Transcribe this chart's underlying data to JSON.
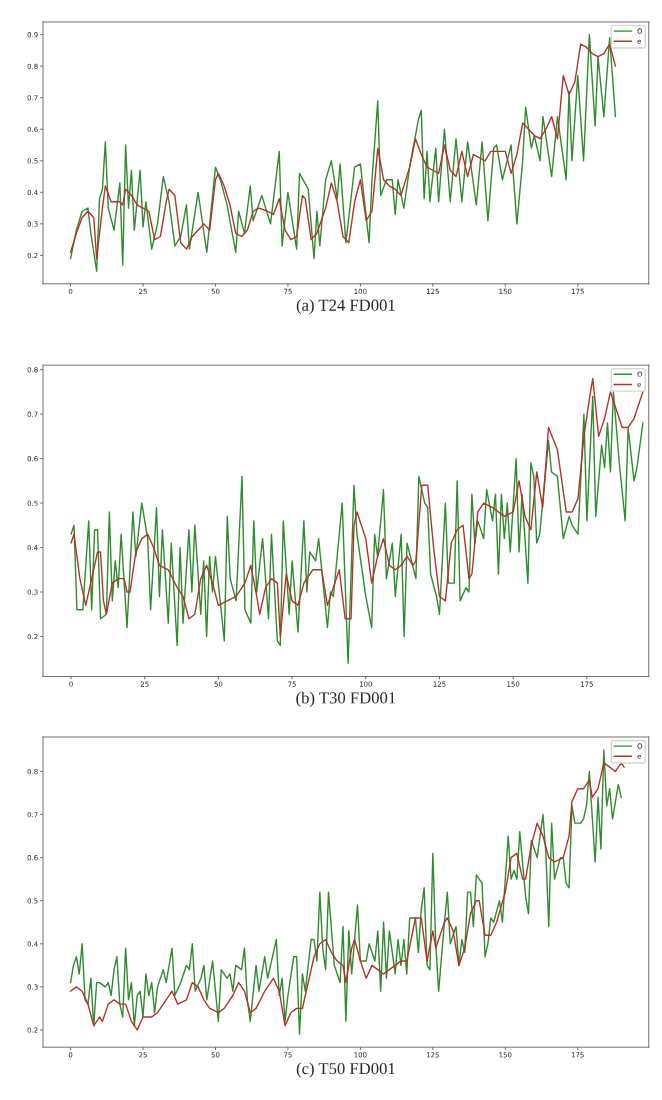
{
  "chart_data": [
    {
      "type": "line",
      "xlim": [
        -9.5,
        199.5
      ],
      "ylim": [
        0.11,
        0.94
      ],
      "xticks": [
        0,
        25,
        50,
        75,
        100,
        125,
        150,
        175
      ],
      "yticks": [
        0.2,
        0.3,
        0.4,
        0.5,
        0.6,
        0.7,
        0.8,
        0.9
      ],
      "legend": "top right",
      "annotations": [
        "(a) T24 FD001"
      ],
      "series": [
        {
          "name": "O",
          "color": "#2e8b2e",
          "x": [
            0,
            2,
            4,
            6,
            7,
            9,
            10,
            11,
            12,
            13,
            15,
            17,
            18,
            19,
            20,
            21,
            22,
            24,
            25,
            26,
            28,
            30,
            32,
            34,
            36,
            38,
            40,
            41,
            44,
            47,
            50,
            52,
            54,
            57,
            58,
            60,
            62,
            63,
            66,
            69,
            72,
            73,
            75,
            78,
            79,
            82,
            84,
            85,
            86,
            88,
            90,
            92,
            93,
            95,
            98,
            100,
            103,
            104,
            106,
            107,
            109,
            111,
            112,
            113,
            115,
            117,
            120,
            121,
            122,
            123,
            124,
            126,
            127,
            129,
            131,
            133,
            135,
            137,
            140,
            142,
            144,
            146,
            147,
            149,
            152,
            154,
            156,
            157,
            159,
            160,
            162,
            163,
            166,
            168,
            171,
            172,
            173,
            175,
            177,
            179,
            181,
            182,
            184,
            186,
            188
          ],
          "values": [
            0.19,
            0.28,
            0.34,
            0.35,
            0.27,
            0.15,
            0.38,
            0.41,
            0.56,
            0.35,
            0.28,
            0.43,
            0.17,
            0.55,
            0.35,
            0.47,
            0.28,
            0.47,
            0.29,
            0.37,
            0.22,
            0.3,
            0.45,
            0.37,
            0.23,
            0.26,
            0.36,
            0.22,
            0.4,
            0.21,
            0.48,
            0.43,
            0.36,
            0.21,
            0.34,
            0.27,
            0.42,
            0.31,
            0.39,
            0.3,
            0.53,
            0.23,
            0.4,
            0.22,
            0.46,
            0.41,
            0.19,
            0.34,
            0.23,
            0.44,
            0.5,
            0.38,
            0.49,
            0.24,
            0.48,
            0.49,
            0.24,
            0.44,
            0.69,
            0.39,
            0.44,
            0.44,
            0.33,
            0.44,
            0.35,
            0.48,
            0.63,
            0.66,
            0.38,
            0.53,
            0.37,
            0.54,
            0.37,
            0.6,
            0.37,
            0.57,
            0.37,
            0.56,
            0.36,
            0.56,
            0.31,
            0.54,
            0.55,
            0.44,
            0.55,
            0.3,
            0.5,
            0.67,
            0.54,
            0.58,
            0.5,
            0.64,
            0.45,
            0.64,
            0.44,
            0.72,
            0.5,
            0.77,
            0.5,
            0.9,
            0.61,
            0.83,
            0.64,
            0.89,
            0.64
          ]
        },
        {
          "name": "e",
          "color": "#b5322a",
          "x": [
            0,
            2,
            4,
            6,
            8,
            9,
            11,
            12,
            14,
            17,
            18,
            19,
            21,
            23,
            25,
            27,
            29,
            31,
            33,
            34,
            36,
            38,
            40,
            42,
            44,
            46,
            48,
            50,
            51,
            53,
            55,
            57,
            59,
            61,
            63,
            65,
            68,
            70,
            72,
            74,
            76,
            78,
            80,
            81,
            83,
            85,
            88,
            90,
            92,
            94,
            96,
            98,
            100,
            102,
            104,
            106,
            108,
            110,
            112,
            114,
            117,
            119,
            121,
            123,
            125,
            127,
            129,
            131,
            133,
            135,
            137,
            139,
            141,
            143,
            145,
            148,
            150,
            152,
            154,
            156,
            158,
            160,
            162,
            164,
            166,
            168,
            170,
            172,
            174,
            176,
            178,
            180,
            182,
            184,
            186,
            188
          ],
          "values": [
            0.21,
            0.27,
            0.32,
            0.34,
            0.32,
            0.19,
            0.35,
            0.42,
            0.37,
            0.37,
            0.36,
            0.41,
            0.39,
            0.36,
            0.35,
            0.34,
            0.25,
            0.26,
            0.37,
            0.41,
            0.39,
            0.24,
            0.22,
            0.26,
            0.28,
            0.3,
            0.28,
            0.44,
            0.46,
            0.42,
            0.36,
            0.27,
            0.26,
            0.28,
            0.34,
            0.35,
            0.34,
            0.33,
            0.38,
            0.28,
            0.25,
            0.26,
            0.39,
            0.38,
            0.25,
            0.27,
            0.35,
            0.43,
            0.37,
            0.26,
            0.24,
            0.37,
            0.44,
            0.31,
            0.34,
            0.54,
            0.44,
            0.42,
            0.41,
            0.39,
            0.48,
            0.57,
            0.52,
            0.48,
            0.47,
            0.46,
            0.55,
            0.47,
            0.45,
            0.53,
            0.45,
            0.52,
            0.51,
            0.5,
            0.53,
            0.53,
            0.53,
            0.46,
            0.52,
            0.62,
            0.6,
            0.58,
            0.57,
            0.6,
            0.64,
            0.57,
            0.77,
            0.71,
            0.75,
            0.87,
            0.86,
            0.84,
            0.83,
            0.84,
            0.87,
            0.8
          ]
        }
      ]
    },
    {
      "type": "line",
      "xlim": [
        -9.5,
        196
      ],
      "ylim": [
        0.11,
        0.81
      ],
      "xticks": [
        0,
        25,
        50,
        75,
        100,
        125,
        150,
        175
      ],
      "yticks": [
        0.2,
        0.3,
        0.4,
        0.5,
        0.6,
        0.7,
        0.8
      ],
      "legend": "top right",
      "annotations": [
        "(b) T30 FD001"
      ],
      "series": [
        {
          "name": "O",
          "color": "#2e8b2e",
          "x": [
            0,
            1,
            2,
            4,
            6,
            7,
            8,
            9,
            10,
            12,
            13,
            14,
            15,
            16,
            17,
            19,
            21,
            22,
            24,
            26,
            27,
            29,
            30,
            31,
            33,
            34,
            36,
            37,
            38,
            40,
            41,
            42,
            44,
            45,
            46,
            47,
            48,
            49,
            52,
            53,
            54,
            56,
            58,
            59,
            61,
            62,
            63,
            65,
            67,
            68,
            70,
            71,
            72,
            74,
            75,
            77,
            79,
            80,
            81,
            83,
            84,
            87,
            88,
            89,
            92,
            94,
            96,
            97,
            100,
            102,
            103,
            104,
            106,
            107,
            109,
            110,
            112,
            113,
            114,
            117,
            118,
            120,
            121,
            122,
            124,
            125,
            127,
            128,
            130,
            131,
            132,
            134,
            135,
            136,
            137,
            138,
            140,
            141,
            143,
            144,
            145,
            146,
            147,
            148,
            149,
            151,
            152,
            153,
            155,
            156,
            157,
            158,
            159,
            162,
            163,
            165,
            167,
            169,
            170,
            172,
            174,
            175,
            177,
            178,
            180,
            181,
            182,
            183,
            184,
            186,
            188,
            189,
            191,
            192,
            194
          ],
          "values": [
            0.43,
            0.45,
            0.26,
            0.26,
            0.46,
            0.26,
            0.44,
            0.44,
            0.24,
            0.25,
            0.48,
            0.28,
            0.37,
            0.31,
            0.43,
            0.22,
            0.48,
            0.38,
            0.5,
            0.42,
            0.26,
            0.49,
            0.29,
            0.44,
            0.23,
            0.41,
            0.18,
            0.4,
            0.23,
            0.44,
            0.3,
            0.45,
            0.25,
            0.37,
            0.2,
            0.38,
            0.3,
            0.38,
            0.19,
            0.47,
            0.33,
            0.28,
            0.56,
            0.26,
            0.23,
            0.46,
            0.3,
            0.42,
            0.24,
            0.43,
            0.19,
            0.18,
            0.46,
            0.25,
            0.37,
            0.21,
            0.46,
            0.3,
            0.39,
            0.37,
            0.42,
            0.22,
            0.3,
            0.29,
            0.5,
            0.14,
            0.54,
            0.43,
            0.29,
            0.22,
            0.43,
            0.38,
            0.53,
            0.33,
            0.41,
            0.29,
            0.43,
            0.2,
            0.41,
            0.33,
            0.56,
            0.5,
            0.49,
            0.34,
            0.29,
            0.25,
            0.5,
            0.32,
            0.32,
            0.55,
            0.28,
            0.31,
            0.3,
            0.52,
            0.41,
            0.46,
            0.42,
            0.53,
            0.46,
            0.52,
            0.34,
            0.52,
            0.42,
            0.5,
            0.39,
            0.6,
            0.39,
            0.52,
            0.32,
            0.59,
            0.56,
            0.41,
            0.43,
            0.64,
            0.57,
            0.56,
            0.42,
            0.47,
            0.45,
            0.43,
            0.7,
            0.46,
            0.74,
            0.47,
            0.63,
            0.58,
            0.68,
            0.57,
            0.75,
            0.59,
            0.46,
            0.67,
            0.55,
            0.58,
            0.68
          ]
        },
        {
          "name": "e",
          "color": "#b5322a",
          "x": [
            0,
            1,
            3,
            5,
            7,
            9,
            10,
            11,
            12,
            14,
            16,
            18,
            19,
            20,
            22,
            24,
            26,
            28,
            30,
            33,
            36,
            38,
            40,
            42,
            44,
            46,
            48,
            50,
            53,
            56,
            59,
            61,
            63,
            64,
            66,
            68,
            70,
            71,
            73,
            75,
            77,
            79,
            82,
            85,
            87,
            89,
            91,
            93,
            95,
            96,
            97,
            100,
            102,
            104,
            106,
            108,
            110,
            112,
            114,
            116,
            117,
            119,
            121,
            123,
            125,
            127,
            129,
            131,
            133,
            135,
            136,
            138,
            140,
            143,
            147,
            150,
            152,
            154,
            156,
            158,
            160,
            162,
            165,
            168,
            170,
            172,
            174,
            176,
            177,
            179,
            181,
            183,
            185,
            187,
            189,
            191,
            194
          ],
          "values": [
            0.41,
            0.43,
            0.33,
            0.27,
            0.33,
            0.39,
            0.39,
            0.28,
            0.25,
            0.32,
            0.33,
            0.33,
            0.3,
            0.3,
            0.39,
            0.42,
            0.43,
            0.4,
            0.36,
            0.35,
            0.31,
            0.29,
            0.24,
            0.25,
            0.33,
            0.36,
            0.32,
            0.27,
            0.28,
            0.29,
            0.32,
            0.36,
            0.29,
            0.25,
            0.31,
            0.33,
            0.32,
            0.2,
            0.34,
            0.28,
            0.27,
            0.32,
            0.35,
            0.35,
            0.27,
            0.31,
            0.35,
            0.24,
            0.24,
            0.45,
            0.48,
            0.42,
            0.32,
            0.38,
            0.42,
            0.36,
            0.35,
            0.36,
            0.38,
            0.36,
            0.37,
            0.54,
            0.54,
            0.4,
            0.29,
            0.28,
            0.41,
            0.44,
            0.45,
            0.33,
            0.34,
            0.48,
            0.5,
            0.49,
            0.47,
            0.48,
            0.55,
            0.47,
            0.44,
            0.57,
            0.49,
            0.67,
            0.62,
            0.48,
            0.48,
            0.51,
            0.65,
            0.74,
            0.78,
            0.65,
            0.69,
            0.75,
            0.71,
            0.67,
            0.67,
            0.69,
            0.75
          ]
        }
      ]
    },
    {
      "type": "line",
      "xlim": [
        -9.5,
        199.5
      ],
      "ylim": [
        0.16,
        0.88
      ],
      "xticks": [
        0,
        25,
        50,
        75,
        100,
        125,
        150,
        175
      ],
      "yticks": [
        0.2,
        0.3,
        0.4,
        0.5,
        0.6,
        0.7,
        0.8
      ],
      "legend": "top right",
      "annotations": [
        "(c) T50 FD001"
      ],
      "series": [
        {
          "name": "O",
          "color": "#2e8b2e",
          "x": [
            0,
            1,
            2,
            3,
            4,
            5,
            6,
            7,
            8,
            9,
            10,
            12,
            13,
            14,
            15,
            16,
            17,
            18,
            19,
            20,
            21,
            22,
            23,
            24,
            25,
            26,
            27,
            28,
            29,
            30,
            32,
            33,
            35,
            36,
            38,
            40,
            41,
            42,
            43,
            45,
            46,
            47,
            49,
            51,
            52,
            54,
            55,
            56,
            57,
            59,
            60,
            61,
            62,
            64,
            65,
            67,
            68,
            69,
            71,
            72,
            73,
            74,
            75,
            77,
            78,
            79,
            80,
            81,
            83,
            84,
            85,
            86,
            87,
            88,
            89,
            91,
            93,
            94,
            95,
            96,
            97,
            99,
            100,
            102,
            103,
            105,
            106,
            107,
            108,
            109,
            110,
            112,
            113,
            114,
            115,
            116,
            117,
            119,
            120,
            121,
            122,
            123,
            124,
            125,
            126,
            127,
            129,
            130,
            131,
            133,
            134,
            135,
            136,
            137,
            138,
            139,
            140,
            142,
            143,
            144,
            145,
            146,
            148,
            149,
            151,
            152,
            153,
            154,
            155,
            157,
            158,
            159,
            160,
            161,
            163,
            164,
            165,
            166,
            167,
            169,
            170,
            171,
            172,
            173,
            174,
            176,
            177,
            178,
            179,
            181,
            182,
            183,
            184,
            185,
            186,
            187,
            189,
            190
          ],
          "values": [
            0.31,
            0.35,
            0.37,
            0.33,
            0.4,
            0.27,
            0.26,
            0.32,
            0.21,
            0.31,
            0.31,
            0.3,
            0.31,
            0.28,
            0.34,
            0.37,
            0.26,
            0.23,
            0.39,
            0.27,
            0.31,
            0.21,
            0.28,
            0.29,
            0.23,
            0.33,
            0.28,
            0.31,
            0.24,
            0.3,
            0.34,
            0.31,
            0.39,
            0.28,
            0.31,
            0.35,
            0.34,
            0.4,
            0.29,
            0.32,
            0.35,
            0.27,
            0.36,
            0.22,
            0.34,
            0.32,
            0.33,
            0.29,
            0.35,
            0.34,
            0.39,
            0.27,
            0.22,
            0.35,
            0.29,
            0.37,
            0.32,
            0.35,
            0.41,
            0.28,
            0.32,
            0.22,
            0.28,
            0.37,
            0.37,
            0.19,
            0.33,
            0.29,
            0.41,
            0.41,
            0.36,
            0.52,
            0.39,
            0.34,
            0.52,
            0.35,
            0.31,
            0.44,
            0.22,
            0.43,
            0.33,
            0.49,
            0.36,
            0.36,
            0.4,
            0.36,
            0.43,
            0.29,
            0.45,
            0.32,
            0.43,
            0.33,
            0.41,
            0.35,
            0.41,
            0.33,
            0.46,
            0.46,
            0.38,
            0.48,
            0.53,
            0.35,
            0.34,
            0.61,
            0.4,
            0.29,
            0.45,
            0.52,
            0.4,
            0.44,
            0.35,
            0.41,
            0.38,
            0.52,
            0.52,
            0.44,
            0.56,
            0.54,
            0.37,
            0.4,
            0.46,
            0.45,
            0.5,
            0.45,
            0.65,
            0.55,
            0.57,
            0.55,
            0.66,
            0.51,
            0.47,
            0.64,
            0.62,
            0.6,
            0.7,
            0.61,
            0.44,
            0.68,
            0.55,
            0.6,
            0.6,
            0.54,
            0.53,
            0.72,
            0.68,
            0.68,
            0.69,
            0.72,
            0.8,
            0.59,
            0.74,
            0.62,
            0.85,
            0.72,
            0.76,
            0.69,
            0.77,
            0.74
          ]
        },
        {
          "name": "e",
          "color": "#b5322a",
          "x": [
            0,
            2,
            4,
            6,
            8,
            10,
            11,
            13,
            15,
            17,
            19,
            21,
            22,
            23,
            25,
            28,
            30,
            32,
            35,
            37,
            40,
            42,
            44,
            46,
            48,
            51,
            53,
            56,
            58,
            60,
            62,
            64,
            67,
            70,
            72,
            74,
            76,
            78,
            80,
            82,
            84,
            86,
            88,
            90,
            92,
            94,
            95,
            97,
            98,
            100,
            102,
            104,
            106,
            108,
            110,
            112,
            114,
            116,
            119,
            121,
            123,
            125,
            126,
            129,
            130,
            132,
            134,
            136,
            138,
            140,
            141,
            143,
            145,
            147,
            150,
            152,
            154,
            156,
            157,
            159,
            161,
            163,
            165,
            167,
            170,
            172,
            173,
            175,
            177,
            179,
            180,
            182,
            184,
            186,
            188,
            190,
            191
          ],
          "values": [
            0.29,
            0.3,
            0.29,
            0.26,
            0.21,
            0.23,
            0.22,
            0.26,
            0.27,
            0.26,
            0.26,
            0.22,
            0.21,
            0.2,
            0.23,
            0.23,
            0.24,
            0.26,
            0.29,
            0.26,
            0.27,
            0.31,
            0.3,
            0.27,
            0.25,
            0.24,
            0.25,
            0.28,
            0.31,
            0.29,
            0.24,
            0.25,
            0.29,
            0.32,
            0.29,
            0.21,
            0.24,
            0.25,
            0.25,
            0.31,
            0.37,
            0.4,
            0.41,
            0.38,
            0.36,
            0.35,
            0.31,
            0.39,
            0.41,
            0.36,
            0.32,
            0.35,
            0.34,
            0.33,
            0.34,
            0.35,
            0.36,
            0.36,
            0.46,
            0.46,
            0.36,
            0.43,
            0.39,
            0.45,
            0.46,
            0.43,
            0.35,
            0.39,
            0.47,
            0.5,
            0.5,
            0.42,
            0.42,
            0.45,
            0.52,
            0.6,
            0.61,
            0.55,
            0.55,
            0.63,
            0.68,
            0.65,
            0.6,
            0.59,
            0.6,
            0.65,
            0.73,
            0.76,
            0.76,
            0.78,
            0.74,
            0.76,
            0.82,
            0.81,
            0.8,
            0.82,
            0.81
          ]
        }
      ]
    }
  ]
}
